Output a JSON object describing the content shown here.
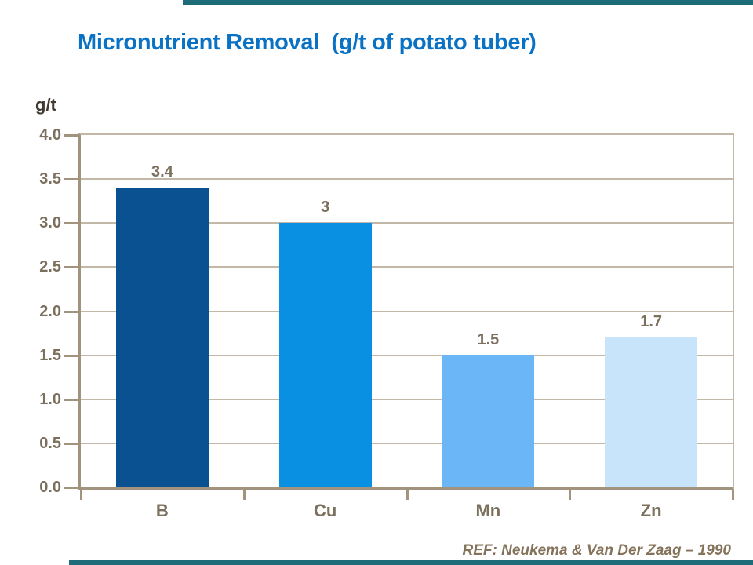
{
  "slide": {
    "title": "Micronutrient Removal  (g/t of potato tuber)",
    "reference": "REF: Neukema & Van Der Zaag – 1990"
  },
  "colors": {
    "title": "#0a72c4",
    "accent_bar": "#1e6b7a",
    "axis": "#a2937f",
    "grid": "#c3b7a8",
    "tick_label": "#7b6f5d",
    "data_label": "#7b6f5d",
    "unit_label": "#403a31",
    "reference": "#84735a"
  },
  "chart_data": {
    "type": "bar",
    "title": "Micronutrient Removal (g/t of potato tuber)",
    "xlabel": "",
    "ylabel": "g/t",
    "unit_label": "g/t",
    "categories": [
      "B",
      "Cu",
      "Mn",
      "Zn"
    ],
    "values": [
      3.4,
      3,
      1.5,
      1.7
    ],
    "data_labels": [
      "3.4",
      "3",
      "1.5",
      "1.7"
    ],
    "bar_colors": [
      "#0a5191",
      "#0990e2",
      "#6ab6f7",
      "#c8e4fb"
    ],
    "ylim": [
      0,
      4
    ],
    "ytick_step": 0.5,
    "yticks": [
      "4.0",
      "3.5",
      "3.0",
      "2.5",
      "2.0",
      "1.5",
      "1.0",
      "0.5",
      "0.0"
    ],
    "grid": true,
    "legend": false,
    "annotation": "REF: Neukema & Van Der Zaag – 1990"
  }
}
